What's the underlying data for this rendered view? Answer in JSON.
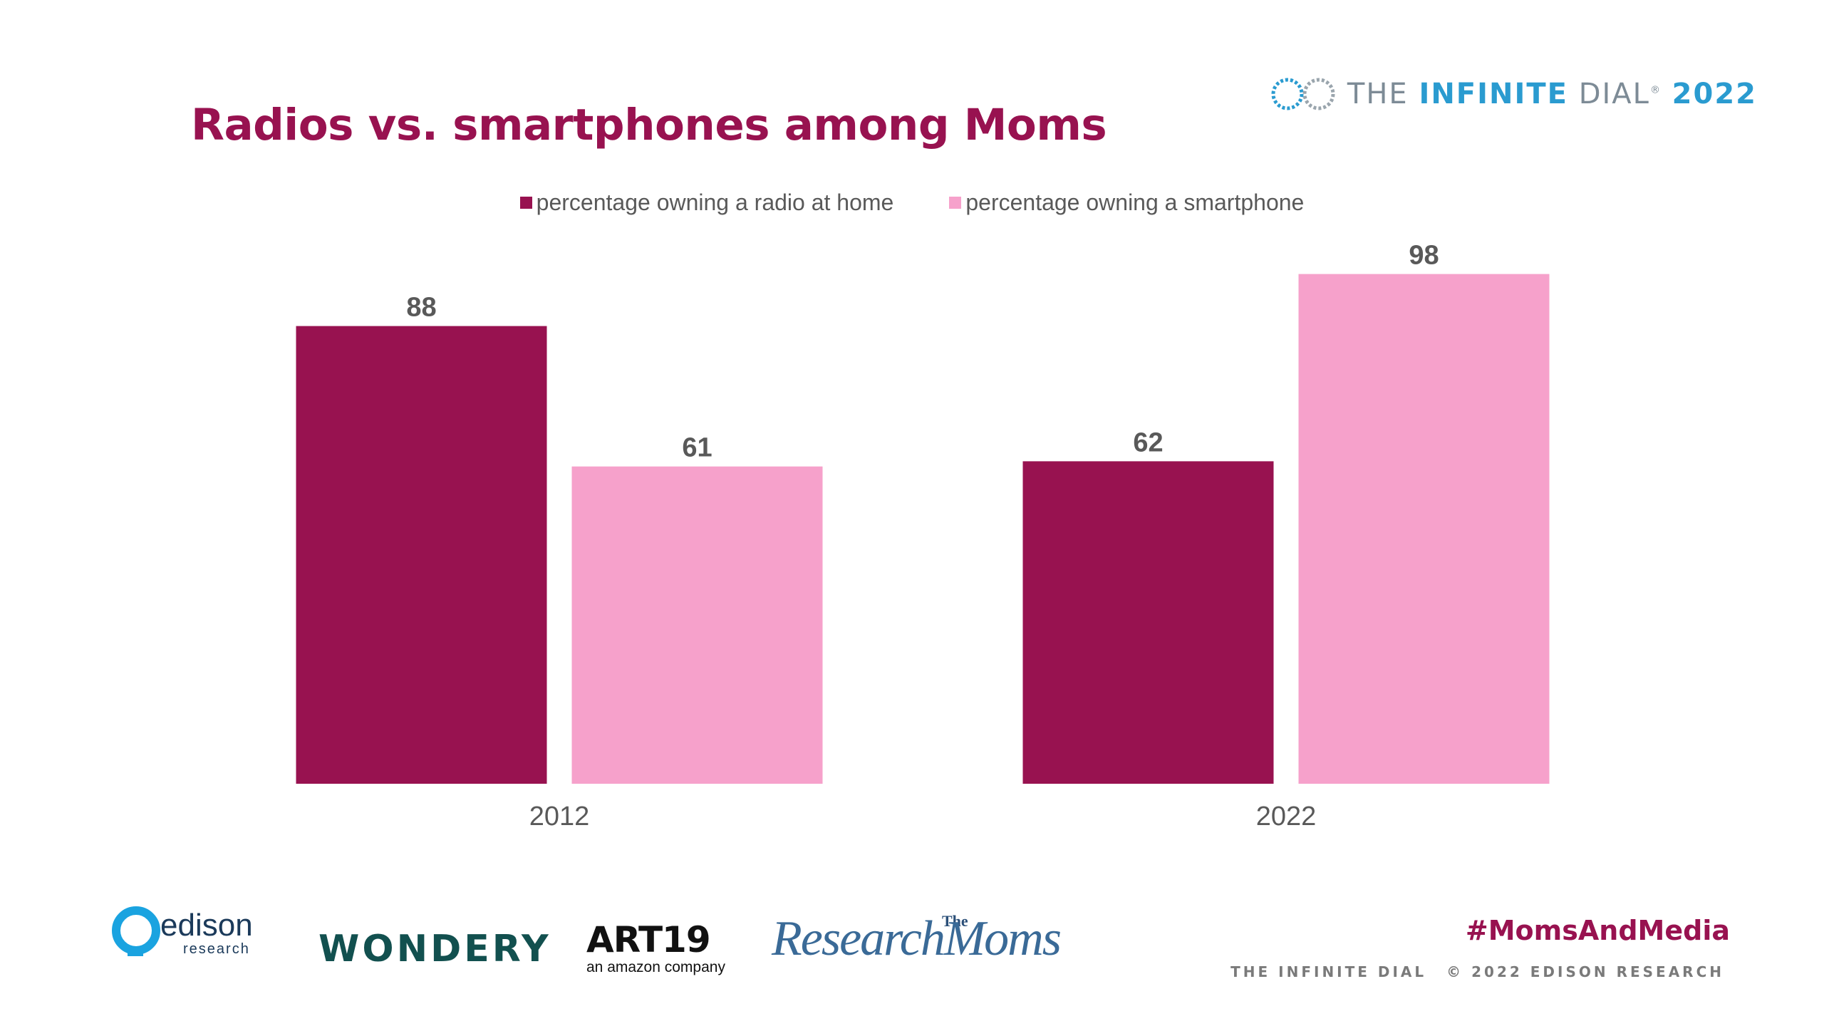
{
  "slide": {
    "title": "Radios vs. smartphones among Moms",
    "brand": {
      "prefix": "THE",
      "highlight": "INFINITE",
      "suffix": "DIAL",
      "reg": "®",
      "year": "2022"
    },
    "hashtag": "#MomsAndMedia",
    "footer_left": "THE INFINITE DIAL",
    "footer_right": "© 2022 EDISON RESEARCH",
    "logos": {
      "edison": "edison",
      "edison_sub": "research",
      "wondery": "WONDERY",
      "art19": "ART19",
      "art19_sub": "an amazon company",
      "research_moms": "ResearchMoms",
      "research_moms_the": "The"
    }
  },
  "colors": {
    "radio": "#981250",
    "smartphone": "#f6a1cb",
    "label": "#595959"
  },
  "chart_data": {
    "type": "bar",
    "title": "Radios vs. smartphones among Moms",
    "categories": [
      "2012",
      "2022"
    ],
    "series": [
      {
        "name": "percentage owning a radio at home",
        "values": [
          88,
          62
        ]
      },
      {
        "name": "percentage owning a smartphone",
        "values": [
          61,
          98
        ]
      }
    ],
    "ylim": [
      0,
      100
    ],
    "grid": false,
    "legend_position": "top",
    "data_labels": true
  }
}
